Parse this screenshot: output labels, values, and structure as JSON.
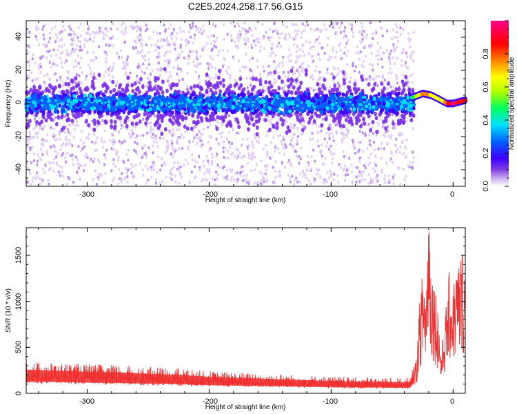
{
  "title": "C2E5.2024.258.17.56.G15",
  "chart_data": [
    {
      "type": "heatmap",
      "title": "C2E5.2024.258.17.56.G15",
      "xlabel": "Height of straight line (km)",
      "ylabel": "Frequency (Hz)",
      "xlim": [
        -350,
        10
      ],
      "ylim": [
        -50,
        50
      ],
      "xticks": [
        -300,
        -200,
        -100,
        0
      ],
      "yticks": [
        -40,
        -20,
        0,
        20,
        40
      ],
      "xtick_labels": [
        "-300",
        "-200",
        "-100",
        "0"
      ],
      "ytick_labels": [
        "-40",
        "-20",
        "0",
        "20",
        "40"
      ],
      "colorbar": {
        "label": "Normalized spectral amplitude",
        "range": [
          0.0,
          1.0
        ],
        "ticks": [
          0.0,
          0.2,
          0.4,
          0.6,
          0.8
        ],
        "tick_labels": [
          "0.0",
          "0.2",
          "0.4",
          "0.6",
          "0.8"
        ],
        "colors": [
          "#ffffff",
          "#c8a8f0",
          "#8040e0",
          "#3c00ff",
          "#0060ff",
          "#00e0ff",
          "#00ff60",
          "#b0ff00",
          "#ffff00",
          "#ff8000",
          "#ff0000",
          "#ff0088"
        ]
      },
      "ridge": {
        "x": [
          -350,
          -300,
          -250,
          -200,
          -150,
          -100,
          -50,
          -32,
          -25,
          -18,
          -10,
          -5,
          0,
          5,
          10
        ],
        "freq_hz": [
          0,
          0,
          0,
          0,
          0,
          0,
          0,
          4,
          6,
          5,
          2,
          0,
          0,
          1,
          2
        ],
        "amplitude": [
          0.3,
          0.3,
          0.3,
          0.3,
          0.3,
          0.3,
          0.35,
          0.5,
          0.75,
          0.7,
          0.6,
          0.8,
          0.95,
          0.9,
          0.9
        ]
      }
    },
    {
      "type": "line",
      "xlabel": "Height of straight line (km)",
      "ylabel": "SNR (10 * v/v)",
      "xlim": [
        -350,
        10
      ],
      "ylim": [
        0,
        1800
      ],
      "xticks": [
        -300,
        -200,
        -100,
        0
      ],
      "yticks": [
        0,
        500,
        1000,
        1500
      ],
      "xtick_labels": [
        "-300",
        "-200",
        "-100",
        "0"
      ],
      "ytick_labels": [
        "0",
        "500",
        "1000",
        "1500"
      ],
      "line_color": "#ee3030",
      "series": [
        {
          "name": "SNR",
          "x": [
            -350,
            -325,
            -300,
            -275,
            -250,
            -225,
            -200,
            -175,
            -150,
            -125,
            -100,
            -75,
            -50,
            -35,
            -30,
            -28,
            -25,
            -22,
            -20,
            -18,
            -15,
            -12,
            -10,
            -8,
            -5,
            -3,
            0,
            3,
            5,
            8,
            10
          ],
          "y": [
            230,
            220,
            210,
            205,
            190,
            180,
            160,
            150,
            140,
            130,
            120,
            115,
            110,
            110,
            300,
            700,
            1000,
            900,
            1750,
            1100,
            900,
            700,
            300,
            500,
            800,
            1000,
            900,
            1050,
            1100,
            1200,
            1050
          ]
        }
      ]
    }
  ]
}
